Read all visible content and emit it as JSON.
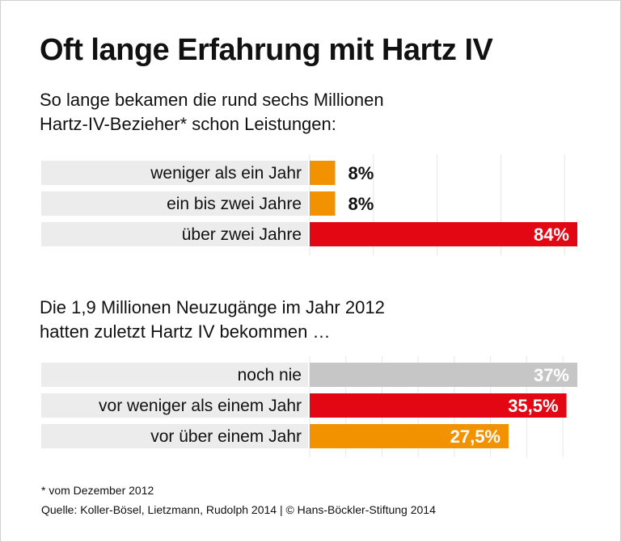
{
  "title": "Oft lange Erfahrung mit Hartz IV",
  "chart_data": [
    {
      "type": "bar",
      "orientation": "horizontal",
      "title": "So lange bekamen die rund sechs Millionen\nHartz-IV-Bezieher* schon Leistungen:",
      "categories": [
        "weniger als ein Jahr",
        "ein bis zwei Jahre",
        "über zwei Jahre"
      ],
      "values": [
        8,
        8,
        84
      ],
      "value_labels": [
        "8%",
        "8%",
        "84%"
      ],
      "colors": [
        "#f39200",
        "#f39200",
        "#e30613"
      ],
      "xlim": [
        0,
        84
      ],
      "grid_step": 20,
      "grid": true
    },
    {
      "type": "bar",
      "orientation": "horizontal",
      "title": "Die 1,9 Millionen Neuzugänge im Jahr 2012\nhatten zuletzt Hartz IV bekommen …",
      "categories": [
        "noch nie",
        "vor weniger als einem Jahr",
        "vor über einem Jahr"
      ],
      "values": [
        37,
        35.5,
        27.5
      ],
      "value_labels": [
        "37%",
        "35,5%",
        "27,5%"
      ],
      "colors": [
        "#c6c6c6",
        "#e30613",
        "#f39200"
      ],
      "xlim": [
        0,
        37
      ],
      "grid_step": 5,
      "grid": true
    }
  ],
  "footnote": "* vom Dezember 2012",
  "source": "Quelle: Koller-Bösel, Lietzmann, Rudolph 2014 | © Hans-Böckler-Stiftung 2014"
}
